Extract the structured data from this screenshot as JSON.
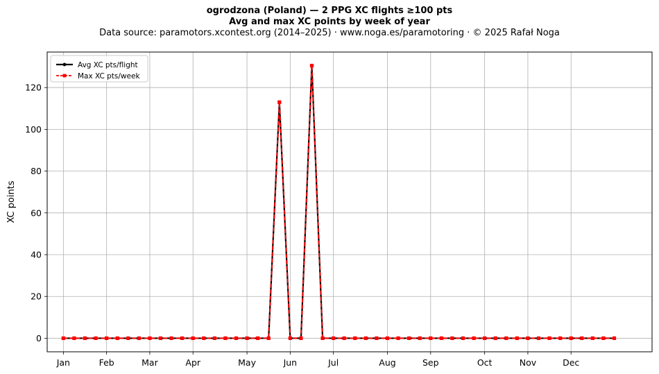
{
  "chart_data": {
    "type": "line",
    "title": "ogrodzona (Poland)  —  2 PPG XC flights ≥100 pts",
    "subtitle": "Avg and max XC points by week of year",
    "source": "Data source: paramotors.xcontest.org (2014–2025)  ·  www.noga.es/paramotoring  ·  © 2025 Rafał Noga",
    "xlabel": "",
    "ylabel": "XC points",
    "xlim": [
      -1.5,
      54.5
    ],
    "ylim": [
      -6.5,
      137
    ],
    "grid": true,
    "legend_position": "top-left",
    "x_ticks": [
      {
        "label": "Jan",
        "x": 0
      },
      {
        "label": "Feb",
        "x": 4
      },
      {
        "label": "Mar",
        "x": 8
      },
      {
        "label": "Apr",
        "x": 12
      },
      {
        "label": "May",
        "x": 17
      },
      {
        "label": "Jun",
        "x": 21
      },
      {
        "label": "Jul",
        "x": 25
      },
      {
        "label": "Aug",
        "x": 30
      },
      {
        "label": "Sep",
        "x": 34
      },
      {
        "label": "Oct",
        "x": 39
      },
      {
        "label": "Nov",
        "x": 43
      },
      {
        "label": "Dec",
        "x": 47
      }
    ],
    "y_ticks": [
      0,
      20,
      40,
      60,
      80,
      100,
      120
    ],
    "x": [
      0,
      1,
      2,
      3,
      4,
      5,
      6,
      7,
      8,
      9,
      10,
      11,
      12,
      13,
      14,
      15,
      16,
      17,
      18,
      19,
      20,
      21,
      22,
      23,
      24,
      25,
      26,
      27,
      28,
      29,
      30,
      31,
      32,
      33,
      34,
      35,
      36,
      37,
      38,
      39,
      40,
      41,
      42,
      43,
      44,
      45,
      46,
      47,
      48,
      49,
      50,
      51
    ],
    "series": [
      {
        "name": "Avg XC pts/flight",
        "color": "#000000",
        "style": "solid",
        "marker": "circle",
        "values": [
          0,
          0,
          0,
          0,
          0,
          0,
          0,
          0,
          0,
          0,
          0,
          0,
          0,
          0,
          0,
          0,
          0,
          0,
          0,
          0,
          113,
          0,
          0,
          130.5,
          0,
          0,
          0,
          0,
          0,
          0,
          0,
          0,
          0,
          0,
          0,
          0,
          0,
          0,
          0,
          0,
          0,
          0,
          0,
          0,
          0,
          0,
          0,
          0,
          0,
          0,
          0,
          0
        ]
      },
      {
        "name": "Max XC pts/week",
        "color": "#ff0000",
        "style": "dashed",
        "marker": "square",
        "values": [
          0,
          0,
          0,
          0,
          0,
          0,
          0,
          0,
          0,
          0,
          0,
          0,
          0,
          0,
          0,
          0,
          0,
          0,
          0,
          0,
          113,
          0,
          0,
          130.5,
          0,
          0,
          0,
          0,
          0,
          0,
          0,
          0,
          0,
          0,
          0,
          0,
          0,
          0,
          0,
          0,
          0,
          0,
          0,
          0,
          0,
          0,
          0,
          0,
          0,
          0,
          0,
          0
        ]
      }
    ]
  }
}
